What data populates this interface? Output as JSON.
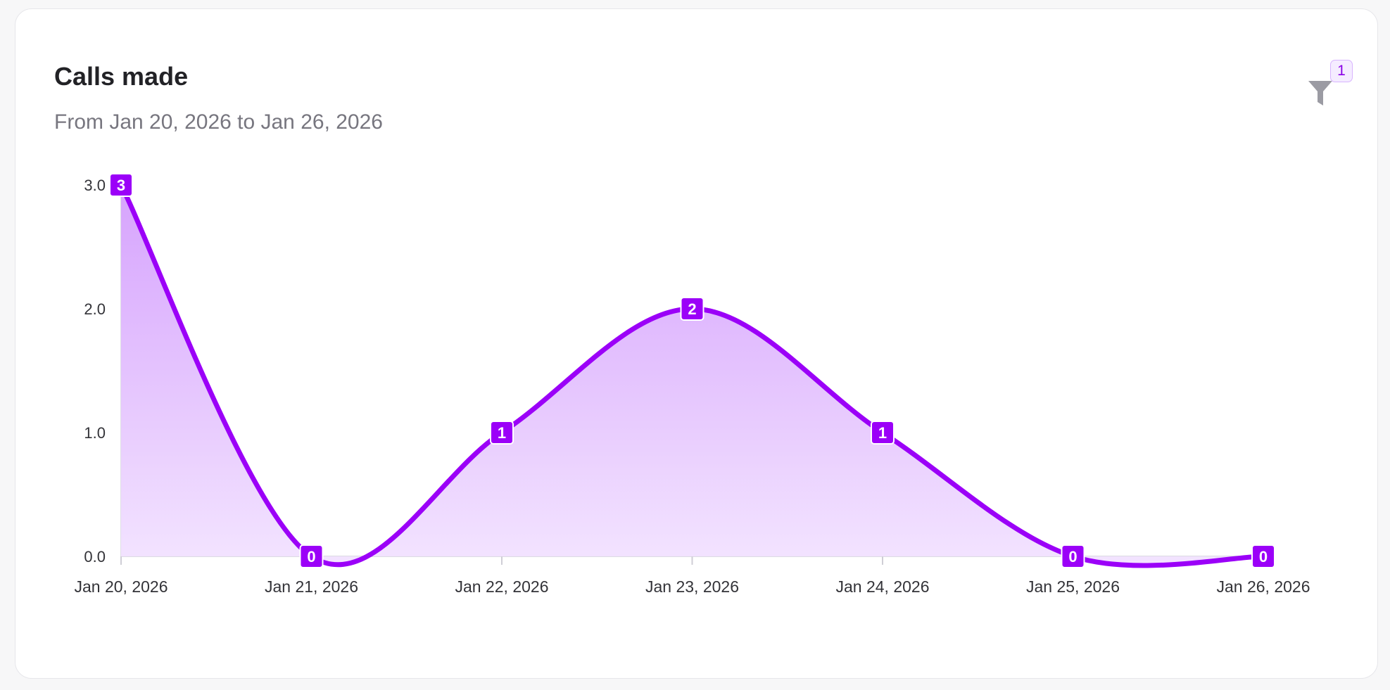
{
  "card": {
    "title": "Calls made",
    "subtitle": "From Jan 20, 2026 to Jan 26, 2026"
  },
  "filter": {
    "icon": "filter-icon",
    "badge_count": "1"
  },
  "colors": {
    "series": "#9b00f8",
    "area_top": "#d6a3fd",
    "area_bottom": "#f3e4ff"
  },
  "chart_data": {
    "type": "area",
    "x": [
      "Jan 20, 2026",
      "Jan 21, 2026",
      "Jan 22, 2026",
      "Jan 23, 2026",
      "Jan 24, 2026",
      "Jan 25, 2026",
      "Jan 26, 2026"
    ],
    "values": [
      3,
      0,
      1,
      2,
      1,
      0,
      0
    ],
    "data_labels": [
      "3",
      "0",
      "1",
      "2",
      "1",
      "0",
      "0"
    ],
    "yticks": [
      "0.0",
      "1.0",
      "2.0",
      "3.0"
    ],
    "ylim": [
      0,
      3
    ],
    "curve": "smooth",
    "grid": false,
    "legend": "none"
  }
}
